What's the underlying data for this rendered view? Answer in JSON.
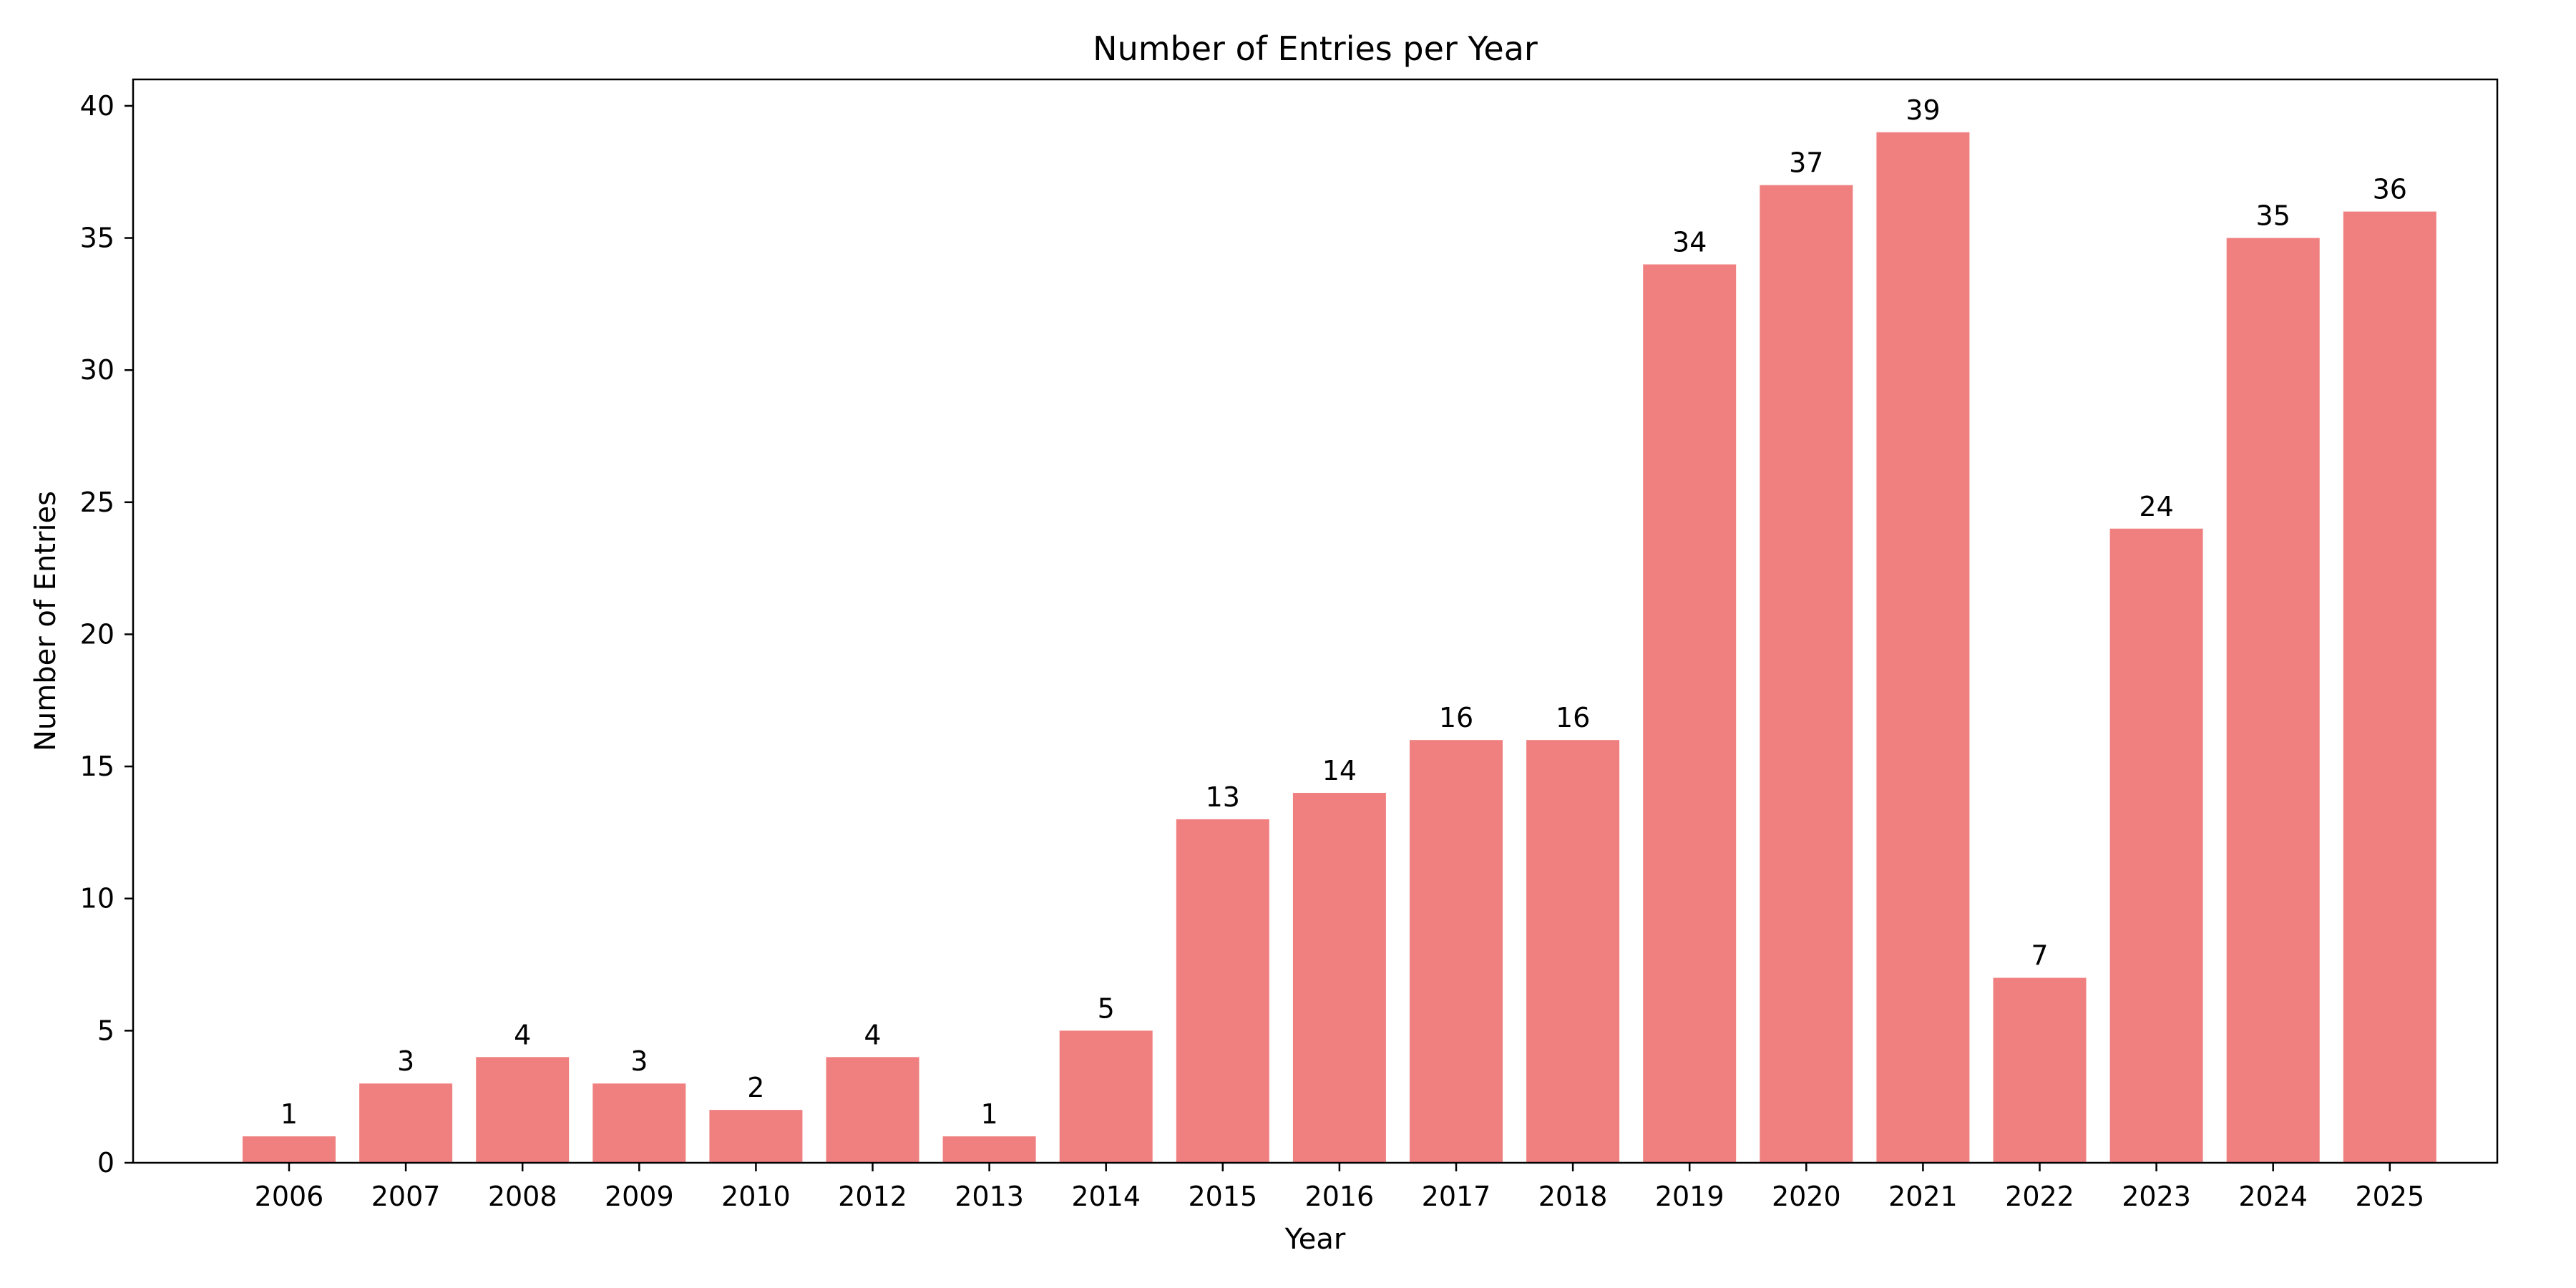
{
  "chart_data": {
    "type": "bar",
    "title": "Number of Entries per Year",
    "xlabel": "Year",
    "ylabel": "Number of Entries",
    "categories": [
      "2006",
      "2007",
      "2008",
      "2009",
      "2010",
      "2012",
      "2013",
      "2014",
      "2015",
      "2016",
      "2017",
      "2018",
      "2019",
      "2020",
      "2021",
      "2022",
      "2023",
      "2024",
      "2025"
    ],
    "values": [
      1,
      3,
      4,
      3,
      2,
      4,
      1,
      5,
      13,
      14,
      16,
      16,
      34,
      37,
      39,
      7,
      24,
      35,
      36
    ],
    "ylim": [
      0,
      41
    ],
    "yticks": [
      0,
      5,
      10,
      15,
      20,
      25,
      30,
      35,
      40
    ],
    "bar_color": "#f08080",
    "data_labels": true,
    "grid": false,
    "legend": "none"
  }
}
